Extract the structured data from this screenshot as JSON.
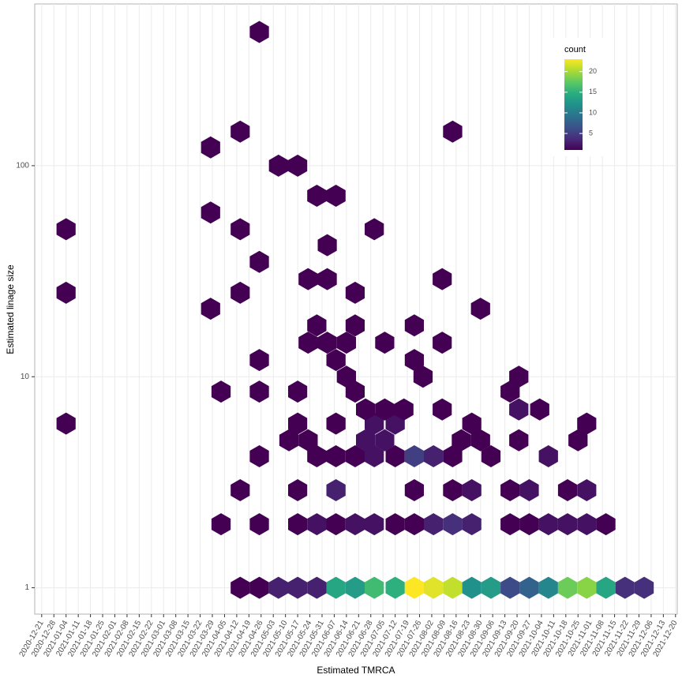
{
  "chart_data": {
    "type": "hexbin",
    "x_label": "Estimated TMRCA",
    "y_label": "Estimated linage size",
    "legend_title": "count",
    "colormap": [
      "#440154",
      "#472d7b",
      "#3b528b",
      "#2c728e",
      "#21918c",
      "#28ae80",
      "#5ec962",
      "#addc30",
      "#fde725"
    ],
    "count_range": [
      1,
      23
    ],
    "count_ticks": [
      5,
      10,
      15,
      20
    ],
    "log_y": true,
    "grid": true,
    "xlim": [
      "2020-12-17",
      "2021-12-21"
    ],
    "ylim": [
      0.75,
      584
    ],
    "yticks": [
      1,
      10,
      100
    ],
    "xticks": [
      "2020-12-21",
      "2020-12-28",
      "2021-01-04",
      "2021-01-11",
      "2021-01-18",
      "2021-01-25",
      "2021-02-01",
      "2021-02-08",
      "2021-02-15",
      "2021-02-22",
      "2021-03-01",
      "2021-03-08",
      "2021-03-15",
      "2021-03-22",
      "2021-03-29",
      "2021-04-05",
      "2021-04-12",
      "2021-04-19",
      "2021-04-26",
      "2021-05-03",
      "2021-05-10",
      "2021-05-17",
      "2021-05-24",
      "2021-05-31",
      "2021-06-07",
      "2021-06-14",
      "2021-06-21",
      "2021-06-28",
      "2021-07-05",
      "2021-07-12",
      "2021-07-19",
      "2021-07-26",
      "2021-08-02",
      "2021-08-09",
      "2021-08-16",
      "2021-08-23",
      "2021-08-30",
      "2021-09-06",
      "2021-09-13",
      "2021-09-20",
      "2021-09-27",
      "2021-10-04",
      "2021-10-11",
      "2021-10-18",
      "2021-10-25",
      "2021-11-01",
      "2021-11-08",
      "2021-11-15",
      "2021-11-22",
      "2021-11-29",
      "2021-12-06",
      "2021-12-13",
      "2021-12-20"
    ],
    "hexes": [
      {
        "x": "2021-04-14",
        "y": 1,
        "count": 1
      },
      {
        "x": "2021-04-25",
        "y": 1,
        "count": 1
      },
      {
        "x": "2021-05-06",
        "y": 1,
        "count": 3
      },
      {
        "x": "2021-05-17",
        "y": 1,
        "count": 3
      },
      {
        "x": "2021-05-28",
        "y": 1,
        "count": 3
      },
      {
        "x": "2021-06-08",
        "y": 1,
        "count": 14
      },
      {
        "x": "2021-06-19",
        "y": 1,
        "count": 13
      },
      {
        "x": "2021-06-30",
        "y": 1,
        "count": 16
      },
      {
        "x": "2021-07-12",
        "y": 1,
        "count": 15
      },
      {
        "x": "2021-07-23",
        "y": 1,
        "count": 23
      },
      {
        "x": "2021-08-03",
        "y": 1,
        "count": 22
      },
      {
        "x": "2021-08-14",
        "y": 1,
        "count": 21
      },
      {
        "x": "2021-08-25",
        "y": 1,
        "count": 12
      },
      {
        "x": "2021-09-05",
        "y": 1,
        "count": 13
      },
      {
        "x": "2021-09-16",
        "y": 1,
        "count": 6
      },
      {
        "x": "2021-09-27",
        "y": 1,
        "count": 8
      },
      {
        "x": "2021-10-08",
        "y": 1,
        "count": 11
      },
      {
        "x": "2021-10-19",
        "y": 1,
        "count": 18
      },
      {
        "x": "2021-10-30",
        "y": 1,
        "count": 19
      },
      {
        "x": "2021-11-10",
        "y": 1,
        "count": 14
      },
      {
        "x": "2021-11-21",
        "y": 1,
        "count": 4
      },
      {
        "x": "2021-12-02",
        "y": 1,
        "count": 4
      },
      {
        "x": "2021-04-03",
        "y": 2,
        "count": 1
      },
      {
        "x": "2021-04-25",
        "y": 2,
        "count": 1
      },
      {
        "x": "2021-05-17",
        "y": 2,
        "count": 1
      },
      {
        "x": "2021-05-28",
        "y": 2,
        "count": 2
      },
      {
        "x": "2021-06-08",
        "y": 2,
        "count": 1
      },
      {
        "x": "2021-06-19",
        "y": 2,
        "count": 2
      },
      {
        "x": "2021-06-30",
        "y": 2,
        "count": 2
      },
      {
        "x": "2021-07-12",
        "y": 2,
        "count": 1
      },
      {
        "x": "2021-07-23",
        "y": 2,
        "count": 1
      },
      {
        "x": "2021-08-03",
        "y": 2,
        "count": 3
      },
      {
        "x": "2021-08-14",
        "y": 2,
        "count": 4
      },
      {
        "x": "2021-08-25",
        "y": 2,
        "count": 3
      },
      {
        "x": "2021-09-16",
        "y": 2,
        "count": 1
      },
      {
        "x": "2021-09-27",
        "y": 2,
        "count": 1
      },
      {
        "x": "2021-10-08",
        "y": 2,
        "count": 2
      },
      {
        "x": "2021-10-19",
        "y": 2,
        "count": 2
      },
      {
        "x": "2021-10-30",
        "y": 2,
        "count": 2
      },
      {
        "x": "2021-11-10",
        "y": 2,
        "count": 1
      },
      {
        "x": "2021-04-14",
        "y": 2.9,
        "count": 1
      },
      {
        "x": "2021-05-17",
        "y": 2.9,
        "count": 1
      },
      {
        "x": "2021-06-08",
        "y": 2.9,
        "count": 3
      },
      {
        "x": "2021-07-23",
        "y": 2.9,
        "count": 1
      },
      {
        "x": "2021-08-14",
        "y": 2.9,
        "count": 1
      },
      {
        "x": "2021-08-25",
        "y": 2.9,
        "count": 2
      },
      {
        "x": "2021-09-16",
        "y": 2.9,
        "count": 1
      },
      {
        "x": "2021-09-27",
        "y": 2.9,
        "count": 2
      },
      {
        "x": "2021-10-19",
        "y": 2.9,
        "count": 1
      },
      {
        "x": "2021-10-30",
        "y": 2.9,
        "count": 2
      },
      {
        "x": "2021-04-25",
        "y": 4.2,
        "count": 1
      },
      {
        "x": "2021-05-28",
        "y": 4.2,
        "count": 1
      },
      {
        "x": "2021-06-08",
        "y": 4.2,
        "count": 1
      },
      {
        "x": "2021-06-19",
        "y": 4.2,
        "count": 1
      },
      {
        "x": "2021-06-30",
        "y": 4.2,
        "count": 2
      },
      {
        "x": "2021-07-12",
        "y": 4.2,
        "count": 1
      },
      {
        "x": "2021-07-23",
        "y": 4.2,
        "count": 5
      },
      {
        "x": "2021-08-03",
        "y": 4.2,
        "count": 3
      },
      {
        "x": "2021-08-14",
        "y": 4.2,
        "count": 1
      },
      {
        "x": "2021-09-05",
        "y": 4.2,
        "count": 1
      },
      {
        "x": "2021-10-08",
        "y": 4.2,
        "count": 2
      },
      {
        "x": "2021-05-12",
        "y": 5,
        "count": 1
      },
      {
        "x": "2021-05-23",
        "y": 5,
        "count": 1
      },
      {
        "x": "2021-06-25",
        "y": 5,
        "count": 2
      },
      {
        "x": "2021-07-06",
        "y": 5,
        "count": 2
      },
      {
        "x": "2021-08-19",
        "y": 5,
        "count": 1
      },
      {
        "x": "2021-08-30",
        "y": 5,
        "count": 1
      },
      {
        "x": "2021-09-21",
        "y": 5,
        "count": 1
      },
      {
        "x": "2021-10-25",
        "y": 5,
        "count": 1
      },
      {
        "x": "2021-01-04",
        "y": 6,
        "count": 1
      },
      {
        "x": "2021-05-17",
        "y": 6,
        "count": 1
      },
      {
        "x": "2021-06-08",
        "y": 6,
        "count": 1
      },
      {
        "x": "2021-06-30",
        "y": 6,
        "count": 2
      },
      {
        "x": "2021-07-12",
        "y": 6,
        "count": 2
      },
      {
        "x": "2021-08-25",
        "y": 6,
        "count": 1
      },
      {
        "x": "2021-10-30",
        "y": 6,
        "count": 1
      },
      {
        "x": "2021-06-25",
        "y": 7,
        "count": 1
      },
      {
        "x": "2021-07-06",
        "y": 7,
        "count": 1
      },
      {
        "x": "2021-07-17",
        "y": 7,
        "count": 1
      },
      {
        "x": "2021-08-08",
        "y": 7,
        "count": 1
      },
      {
        "x": "2021-09-21",
        "y": 7,
        "count": 2
      },
      {
        "x": "2021-10-03",
        "y": 7,
        "count": 1
      },
      {
        "x": "2021-04-03",
        "y": 8.5,
        "count": 1
      },
      {
        "x": "2021-04-25",
        "y": 8.5,
        "count": 1
      },
      {
        "x": "2021-05-17",
        "y": 8.5,
        "count": 1
      },
      {
        "x": "2021-06-19",
        "y": 8.5,
        "count": 1
      },
      {
        "x": "2021-09-16",
        "y": 8.5,
        "count": 1
      },
      {
        "x": "2021-06-14",
        "y": 10,
        "count": 1
      },
      {
        "x": "2021-07-28",
        "y": 10,
        "count": 1
      },
      {
        "x": "2021-09-21",
        "y": 10,
        "count": 1
      },
      {
        "x": "2021-04-25",
        "y": 12,
        "count": 1
      },
      {
        "x": "2021-06-08",
        "y": 12,
        "count": 1
      },
      {
        "x": "2021-07-23",
        "y": 12,
        "count": 1
      },
      {
        "x": "2021-05-23",
        "y": 14.5,
        "count": 1
      },
      {
        "x": "2021-06-03",
        "y": 14.5,
        "count": 1
      },
      {
        "x": "2021-06-14",
        "y": 14.5,
        "count": 1
      },
      {
        "x": "2021-07-06",
        "y": 14.5,
        "count": 1
      },
      {
        "x": "2021-08-08",
        "y": 14.5,
        "count": 1
      },
      {
        "x": "2021-05-28",
        "y": 17.5,
        "count": 1
      },
      {
        "x": "2021-06-19",
        "y": 17.5,
        "count": 1
      },
      {
        "x": "2021-07-23",
        "y": 17.5,
        "count": 1
      },
      {
        "x": "2021-03-28",
        "y": 21,
        "count": 1
      },
      {
        "x": "2021-08-30",
        "y": 21,
        "count": 1
      },
      {
        "x": "2021-01-04",
        "y": 25,
        "count": 1
      },
      {
        "x": "2021-04-14",
        "y": 25,
        "count": 1
      },
      {
        "x": "2021-06-19",
        "y": 25,
        "count": 1
      },
      {
        "x": "2021-05-23",
        "y": 29,
        "count": 1
      },
      {
        "x": "2021-06-03",
        "y": 29,
        "count": 1
      },
      {
        "x": "2021-08-08",
        "y": 29,
        "count": 1
      },
      {
        "x": "2021-04-25",
        "y": 35,
        "count": 1
      },
      {
        "x": "2021-06-03",
        "y": 42,
        "count": 1
      },
      {
        "x": "2021-01-04",
        "y": 50,
        "count": 1
      },
      {
        "x": "2021-04-14",
        "y": 50,
        "count": 1
      },
      {
        "x": "2021-06-30",
        "y": 50,
        "count": 1
      },
      {
        "x": "2021-03-28",
        "y": 60,
        "count": 1
      },
      {
        "x": "2021-05-28",
        "y": 72,
        "count": 1
      },
      {
        "x": "2021-06-08",
        "y": 72,
        "count": 1
      },
      {
        "x": "2021-05-06",
        "y": 100,
        "count": 1
      },
      {
        "x": "2021-05-17",
        "y": 100,
        "count": 1
      },
      {
        "x": "2021-03-28",
        "y": 122,
        "count": 1
      },
      {
        "x": "2021-04-14",
        "y": 145,
        "count": 1
      },
      {
        "x": "2021-08-14",
        "y": 145,
        "count": 1
      },
      {
        "x": "2021-04-25",
        "y": 430,
        "count": 1
      }
    ]
  }
}
